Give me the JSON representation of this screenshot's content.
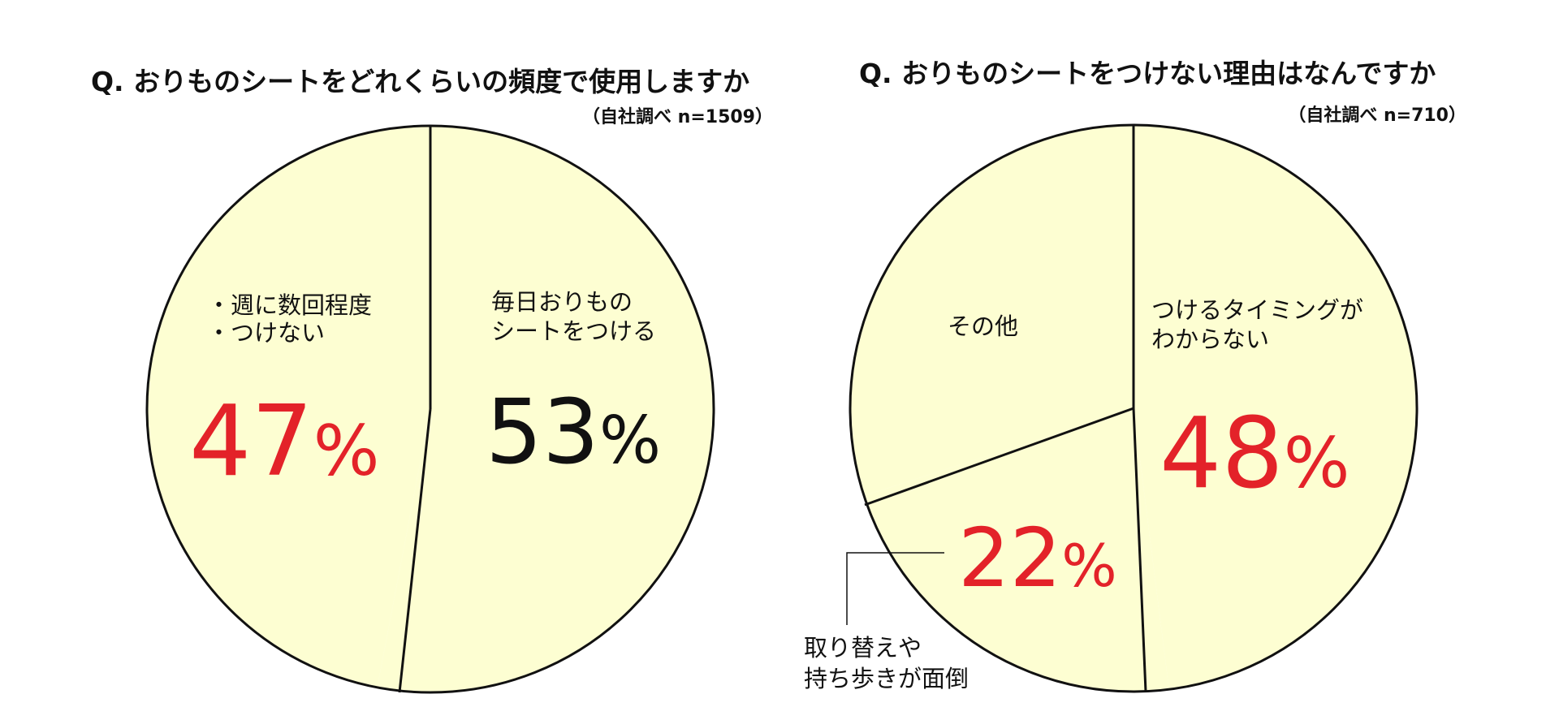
{
  "colors": {
    "slice_fill": "#fdfed2",
    "outline": "#111111",
    "highlight_red": "#e32229",
    "normal_black": "#111111"
  },
  "chart_data": [
    {
      "type": "pie",
      "title": "Q. おりものシートをどれくらいの頻度で使用しますか",
      "source": "（自社調べ n=1509）",
      "slices": [
        {
          "lines": [
            "毎日おりもの",
            "シートをつける"
          ],
          "value": 53,
          "value_text": "53",
          "unit": "%",
          "color": "#111111"
        },
        {
          "lines": [
            "・週に数回程度",
            "・つけない"
          ],
          "value": 47,
          "value_text": "47",
          "unit": "%",
          "color": "#e32229"
        }
      ]
    },
    {
      "type": "pie",
      "title": "Q. おりものシートをつけない理由はなんですか",
      "source": "（自社調べ n=710）",
      "slices": [
        {
          "lines": [
            "つけるタイミングが",
            "わからない"
          ],
          "value": 48,
          "value_text": "48",
          "unit": "%",
          "color": "#e32229"
        },
        {
          "lines": [
            "取り替えや",
            "持ち歩きが面倒"
          ],
          "value": 22,
          "value_text": "22",
          "unit": "%",
          "color": "#e32229"
        },
        {
          "lines": [
            "その他"
          ],
          "value": 30,
          "value_text": "",
          "unit": "",
          "color": "#111111"
        }
      ]
    }
  ]
}
